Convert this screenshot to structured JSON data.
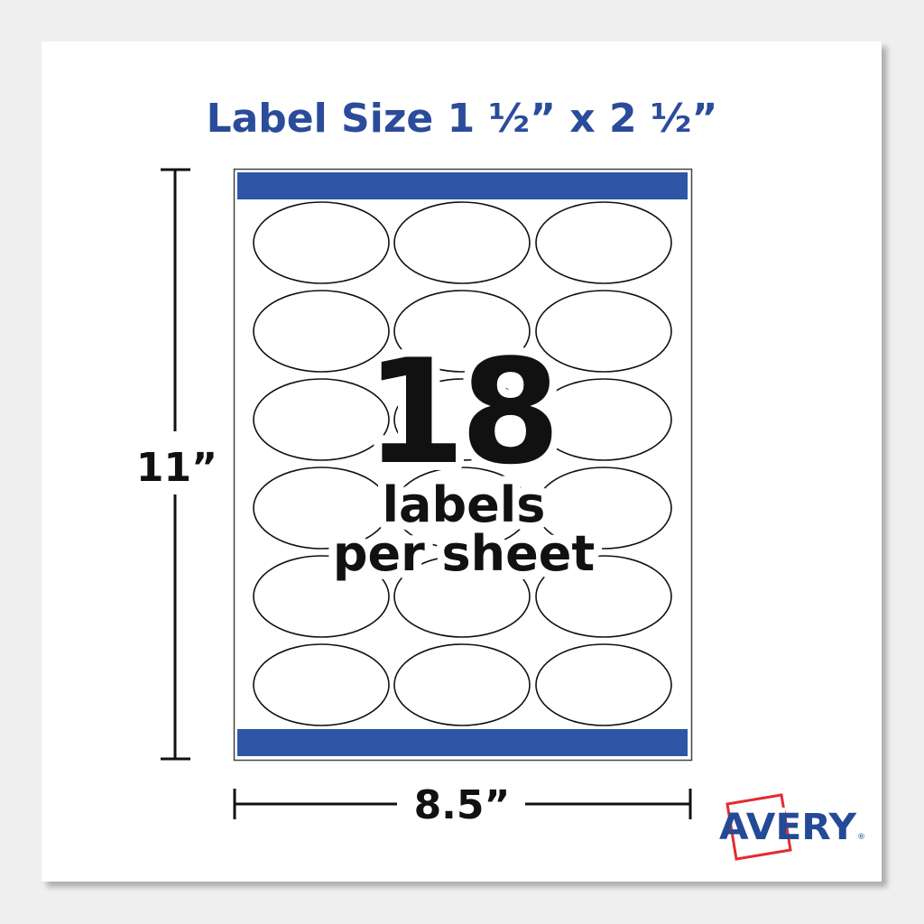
{
  "title": "Label Size 1 ½” x 2 ½”",
  "height_label": "11”",
  "width_label": "8.5”",
  "count": "18",
  "count_line1": "labels",
  "count_line2": "per sheet",
  "sheet": {
    "rows": 6,
    "columns": 3,
    "label_shape": "oval"
  },
  "brand": {
    "name": "AVERY",
    "registered": "®"
  },
  "colors": {
    "accent_blue": "#2e56a6",
    "title_blue": "#2b4c9b",
    "brand_red": "#e42b2f"
  }
}
